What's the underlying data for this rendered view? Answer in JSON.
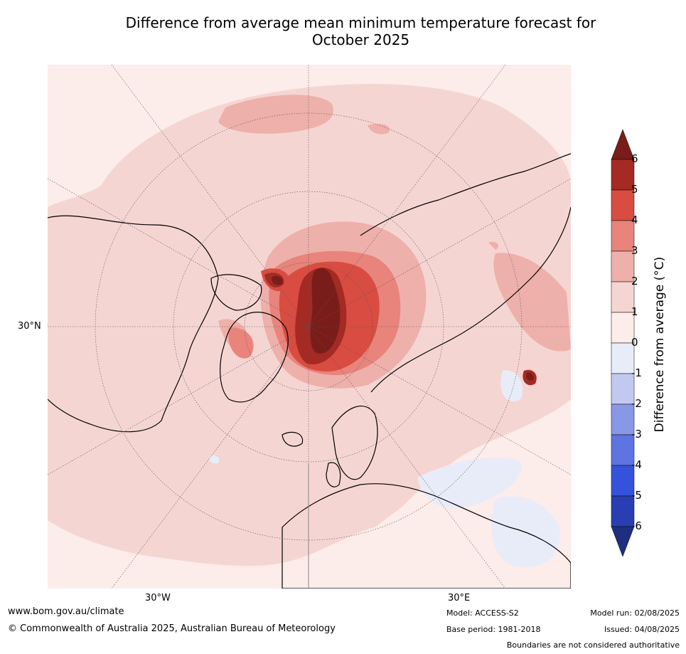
{
  "title": {
    "line1": "Difference from average mean minimum temperature forecast for",
    "line2": "October 2025"
  },
  "map": {
    "lat_labels": [
      "30°N"
    ],
    "lon_labels": [
      "30°W",
      "30°E"
    ],
    "colors": {
      "ocean_background": "#fcecea",
      "land_ink": "#000000",
      "graticule": "#555555",
      "border": "#888888"
    }
  },
  "colorbar": {
    "title": "Difference from average (°C)",
    "ticks": [
      "6",
      "5",
      "4",
      "3",
      "2",
      "1",
      "0",
      "-1",
      "-2",
      "-3",
      "-4",
      "-5",
      "-6"
    ],
    "bins": [
      {
        "range": [
          6,
          99
        ],
        "color": "#7a1d1a"
      },
      {
        "range": [
          5,
          6
        ],
        "color": "#a52a24"
      },
      {
        "range": [
          4,
          5
        ],
        "color": "#d94c41"
      },
      {
        "range": [
          3,
          4
        ],
        "color": "#e8847c"
      },
      {
        "range": [
          2,
          3
        ],
        "color": "#eeb0aa"
      },
      {
        "range": [
          1,
          2
        ],
        "color": "#f5d5d2"
      },
      {
        "range": [
          0,
          1
        ],
        "color": "#fcecea"
      },
      {
        "range": [
          -1,
          0
        ],
        "color": "#e8ecf9"
      },
      {
        "range": [
          -2,
          -1
        ],
        "color": "#c2c9f0"
      },
      {
        "range": [
          -3,
          -2
        ],
        "color": "#8898e6"
      },
      {
        "range": [
          -4,
          -3
        ],
        "color": "#5d74e2"
      },
      {
        "range": [
          -5,
          -4
        ],
        "color": "#3552dc"
      },
      {
        "range": [
          -6,
          -5
        ],
        "color": "#2a3eb3"
      },
      {
        "range": [
          -99,
          -6
        ],
        "color": "#1e2f80"
      }
    ]
  },
  "footer": {
    "website": "www.bom.gov.au/climate",
    "copyright": "© Commonwealth of Australia 2025, Australian Bureau of Meteorology",
    "model": "Model: ACCESS-S2",
    "base_period": "Base period: 1981-2018",
    "model_run": "Model run: 02/08/2025",
    "issued": "Issued: 04/08/2025",
    "disclaimer": "Boundaries are not considered authoritative"
  }
}
